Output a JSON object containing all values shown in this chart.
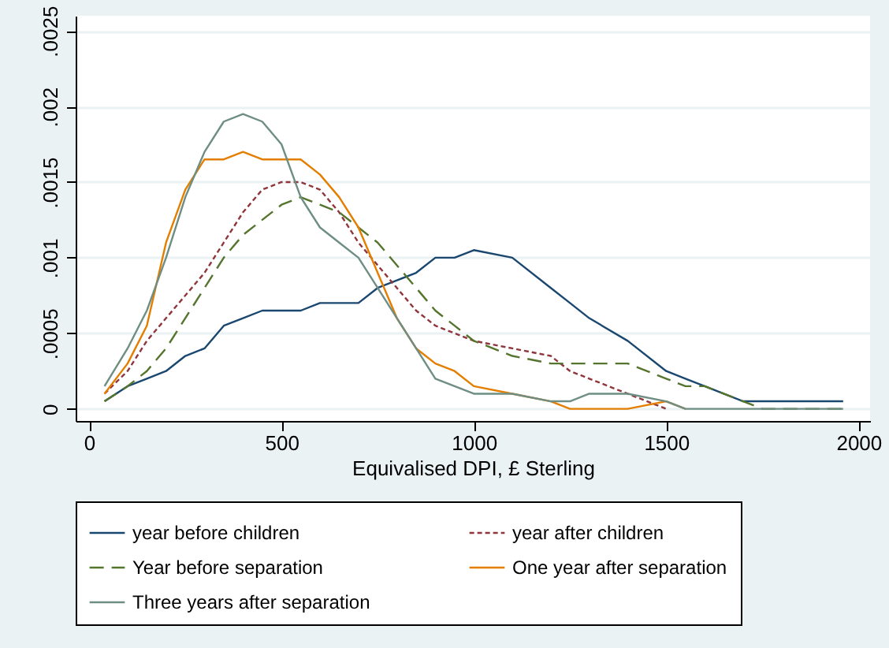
{
  "chart_data": {
    "type": "line",
    "xlabel": "Equivalised DPI, £ Sterling",
    "x": [
      40,
      100,
      150,
      200,
      250,
      300,
      350,
      400,
      450,
      500,
      550,
      600,
      650,
      700,
      750,
      800,
      850,
      900,
      950,
      1000,
      1100,
      1200,
      1250,
      1300,
      1400,
      1500,
      1550,
      1600,
      1700,
      1750,
      1800,
      1900,
      1960
    ],
    "series": [
      {
        "name": "year before children",
        "color": "#1a476f",
        "line_style": "solid",
        "values": [
          5e-05,
          0.00015,
          0.0002,
          0.00025,
          0.00035,
          0.0004,
          0.00055,
          0.0006,
          0.00065,
          0.00065,
          0.00065,
          0.0007,
          0.0007,
          0.0007,
          0.0008,
          0.00085,
          0.0009,
          0.001,
          0.001,
          0.00105,
          0.001,
          0.0008,
          0.0007,
          0.0006,
          0.00045,
          0.00025,
          0.0002,
          0.00015,
          5e-05,
          5e-05,
          5e-05,
          5e-05,
          5e-05
        ]
      },
      {
        "name": "year after children",
        "color": "#90353b",
        "line_style": "dotted",
        "values": [
          0.0001,
          0.00025,
          0.00045,
          0.0006,
          0.00075,
          0.0009,
          0.0011,
          0.0013,
          0.00145,
          0.0015,
          0.0015,
          0.00145,
          0.0013,
          0.0011,
          0.00095,
          0.0008,
          0.00065,
          0.00055,
          0.0005,
          0.00045,
          0.0004,
          0.00035,
          0.00025,
          0.0002,
          0.0001,
          0,
          null,
          null,
          null,
          null,
          null,
          null,
          null
        ]
      },
      {
        "name": "Year before separation",
        "color": "#55752f",
        "line_style": "dashed",
        "values": [
          5e-05,
          0.00015,
          0.00025,
          0.0004,
          0.0006,
          0.0008,
          0.001,
          0.00115,
          0.00125,
          0.00135,
          0.0014,
          0.00135,
          0.0013,
          0.0012,
          0.0011,
          0.00095,
          0.0008,
          0.00065,
          0.00055,
          0.00045,
          0.00035,
          0.0003,
          0.0003,
          0.0003,
          0.0003,
          0.0002,
          0.00015,
          0.00015,
          5e-05,
          0,
          0,
          0,
          0
        ]
      },
      {
        "name": "One year after separation",
        "color": "#e37e00",
        "line_style": "solid",
        "values": [
          0.0001,
          0.0003,
          0.00055,
          0.0011,
          0.00145,
          0.00165,
          0.00165,
          0.0017,
          0.00165,
          0.00165,
          0.00165,
          0.00155,
          0.0014,
          0.0012,
          0.0009,
          0.0006,
          0.0004,
          0.0003,
          0.00025,
          0.00015,
          0.0001,
          5e-05,
          0,
          0,
          0,
          5e-05,
          0,
          null,
          null,
          null,
          null,
          null,
          null
        ]
      },
      {
        "name": "Three years after separation",
        "color": "#6e8e84",
        "line_style": "solid",
        "values": [
          0.00015,
          0.0004,
          0.00065,
          0.001,
          0.0014,
          0.0017,
          0.0019,
          0.00195,
          0.0019,
          0.00175,
          0.0014,
          0.0012,
          0.0011,
          0.001,
          0.0008,
          0.0006,
          0.0004,
          0.0002,
          0.00015,
          0.0001,
          0.0001,
          5e-05,
          5e-05,
          0.0001,
          0.0001,
          5e-05,
          0,
          0,
          0,
          0,
          0,
          0,
          0
        ]
      }
    ],
    "xlim": [
      -35,
      2030
    ],
    "xticks": [
      0,
      500,
      1000,
      1500,
      2000
    ],
    "ylim": [
      -8e-05,
      0.0026
    ],
    "yticks": [
      {
        "value": 0,
        "label": "0"
      },
      {
        "value": 0.0005,
        "label": ".0005"
      },
      {
        "value": 0.001,
        "label": ".001"
      },
      {
        "value": 0.0015,
        "label": ".0015"
      },
      {
        "value": 0.002,
        "label": ".002"
      },
      {
        "value": 0.0025,
        "label": ".0025"
      }
    ],
    "grid": "y",
    "legend": "bottom"
  }
}
